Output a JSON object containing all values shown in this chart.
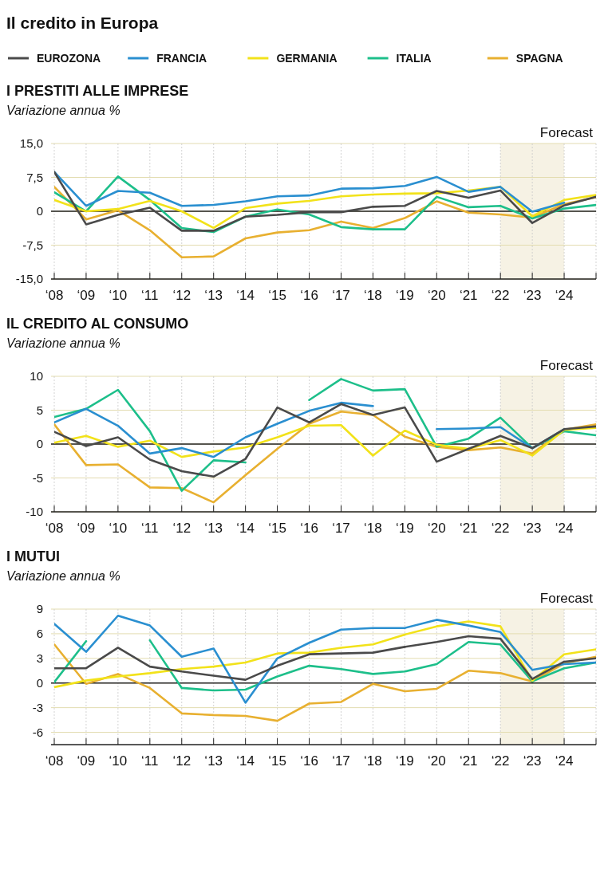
{
  "chart_data": [
    {
      "type": "line",
      "annotations": [
        "Il credito in Europa"
      ],
      "title": "I PRESTITI ALLE IMPRESE",
      "subtitle": "Variazione annua %",
      "legend": "top",
      "grid": true,
      "categories": [
        "‘08",
        "‘09",
        "‘10",
        "‘11",
        "‘12",
        "‘13",
        "‘14",
        "‘15",
        "‘16",
        "‘17",
        "‘18",
        "‘19",
        "‘20",
        "‘21",
        "‘22",
        "‘23",
        "‘24",
        null
      ],
      "ylim": [
        -15,
        15
      ],
      "yticks": [
        {
          "value": -15,
          "label": "-15,0"
        },
        {
          "value": -7.5,
          "label": "-7,5"
        },
        0,
        {
          "value": 7.5,
          "label": "7,5"
        },
        {
          "value": 15,
          "label": "15,0"
        }
      ],
      "bands": [
        {
          "axis": "x",
          "from": "‘22",
          "to": "‘24",
          "label": "Forecast",
          "color": "#f6f2e4"
        }
      ],
      "ref_lines": [
        {
          "axis": "y",
          "value": 0,
          "color": "#222222"
        }
      ],
      "series": [
        {
          "name": "EUROZONA",
          "color": "#4a4a4a",
          "values": [
            8.7,
            -2.9,
            -0.8,
            0.8,
            -4.3,
            -4.3,
            -1.2,
            -0.8,
            -0.2,
            -0.2,
            1.0,
            1.2,
            4.5,
            3.0,
            4.6,
            -2.6,
            1.3,
            3.2
          ]
        },
        {
          "name": "FRANCIA",
          "color": "#2a8fd0",
          "values": [
            8.7,
            1.2,
            4.5,
            4.1,
            1.2,
            1.4,
            2.2,
            3.3,
            3.5,
            5.0,
            5.1,
            5.6,
            7.6,
            4.3,
            5.4,
            -0.1,
            1.9,
            null
          ]
        },
        {
          "name": "GERMANIA",
          "color": "#f2e21a",
          "values": [
            2.5,
            0.0,
            0.5,
            2.3,
            0.0,
            -3.7,
            0.7,
            1.7,
            2.3,
            3.3,
            3.7,
            3.9,
            4.0,
            4.6,
            5.4,
            -1.1,
            2.5,
            3.6
          ]
        },
        {
          "name": "ITALIA",
          "color": "#1dbf8a",
          "values": [
            4.2,
            0.0,
            7.7,
            2.5,
            -3.7,
            -4.6,
            -1.2,
            0.4,
            -0.7,
            -3.5,
            -4.0,
            -4.0,
            3.2,
            0.9,
            1.2,
            -1.6,
            0.6,
            1.4
          ]
        },
        {
          "name": "SPAGNA",
          "color": "#e8b030",
          "values": [
            5.4,
            -1.8,
            0.2,
            -4.2,
            -10.2,
            -10.0,
            -6.0,
            -4.7,
            -4.2,
            -2.3,
            -3.7,
            -1.5,
            2.2,
            -0.3,
            -0.7,
            -1.4,
            1.6,
            3.1
          ]
        }
      ]
    },
    {
      "type": "line",
      "title": "IL CREDITO AL CONSUMO",
      "subtitle": "Variazione annua %",
      "grid": true,
      "categories": [
        "‘08",
        "‘09",
        "‘10",
        "‘11",
        "‘12",
        "‘13",
        "‘14",
        "‘15",
        "‘16",
        "‘17",
        "‘18",
        "‘19",
        "‘20",
        "‘21",
        "‘22",
        "‘23",
        "‘24",
        null
      ],
      "ylim": [
        -10,
        10
      ],
      "yticks": [
        -10,
        -5,
        0,
        5,
        10
      ],
      "bands": [
        {
          "axis": "x",
          "from": "‘22",
          "to": "‘24",
          "label": "Forecast",
          "color": "#f6f2e4"
        }
      ],
      "ref_lines": [
        {
          "axis": "y",
          "value": 0,
          "color": "#222222"
        }
      ],
      "series": [
        {
          "color": "#4a4a4a",
          "values": [
            1.8,
            -0.3,
            1.0,
            -2.3,
            -4.0,
            -4.8,
            -2.2,
            5.4,
            3.2,
            5.9,
            4.3,
            5.4,
            -2.6,
            -0.7,
            1.2,
            -0.6,
            2.2,
            2.6
          ]
        },
        {
          "color": "#2a8fd0",
          "values": [
            3.2,
            5.2,
            2.7,
            -1.4,
            -0.6,
            -1.9,
            1.0,
            3.0,
            4.9,
            6.1,
            5.6,
            null,
            2.2,
            2.3,
            2.5,
            -0.6,
            2.2,
            null
          ]
        },
        {
          "color": "#f2e21a",
          "values": [
            0.2,
            1.2,
            -0.4,
            0.5,
            -1.9,
            -1.1,
            -0.5,
            1.0,
            2.7,
            2.8,
            -1.7,
            2.0,
            -0.1,
            -0.7,
            0.6,
            -1.7,
            2.1,
            2.4
          ]
        },
        {
          "color": "#1dbf8a",
          "values": [
            4.0,
            5.2,
            8.0,
            1.9,
            -6.9,
            -2.4,
            -2.7,
            null,
            6.5,
            9.6,
            7.9,
            8.1,
            -0.4,
            0.8,
            3.9,
            -0.6,
            1.9,
            1.3
          ]
        },
        {
          "color": "#e8b030",
          "values": [
            2.9,
            -3.1,
            -3.0,
            -6.4,
            -6.5,
            -8.6,
            -4.6,
            -0.7,
            3.0,
            4.8,
            4.3,
            1.1,
            -0.4,
            -0.9,
            -0.5,
            -1.4,
            2.1,
            2.9
          ]
        }
      ]
    },
    {
      "type": "line",
      "title": "I MUTUI",
      "subtitle": "Variazione annua %",
      "grid": true,
      "categories": [
        "‘08",
        "‘09",
        "‘10",
        "‘11",
        "‘12",
        "‘13",
        "‘14",
        "‘15",
        "‘16",
        "‘17",
        "‘18",
        "‘19",
        "‘20",
        "‘21",
        "‘22",
        "‘23",
        "‘24",
        null
      ],
      "ylim": [
        -7.5,
        9
      ],
      "yticks": [
        -6,
        -3,
        0,
        3,
        6,
        9
      ],
      "bands": [
        {
          "axis": "x",
          "from": "‘22",
          "to": "‘24",
          "label": "Forecast",
          "color": "#f6f2e4"
        }
      ],
      "ref_lines": [
        {
          "axis": "y",
          "value": 0,
          "color": "#222222"
        }
      ],
      "series": [
        {
          "color": "#4a4a4a",
          "values": [
            1.8,
            1.8,
            4.3,
            2.0,
            1.4,
            0.9,
            0.4,
            2.1,
            3.5,
            3.6,
            3.7,
            4.4,
            5.0,
            5.7,
            5.4,
            0.5,
            2.6,
            3.0
          ]
        },
        {
          "color": "#2a8fd0",
          "values": [
            7.2,
            3.8,
            8.2,
            7.0,
            3.2,
            4.2,
            -2.4,
            3.0,
            4.9,
            6.5,
            6.7,
            6.7,
            7.7,
            7.0,
            6.2,
            1.6,
            2.3,
            2.5
          ]
        },
        {
          "color": "#f2e21a",
          "values": [
            -0.5,
            0.3,
            0.8,
            1.2,
            1.7,
            2.0,
            2.5,
            3.6,
            3.7,
            4.3,
            4.7,
            5.9,
            6.9,
            7.5,
            6.9,
            0.3,
            3.5,
            4.1
          ]
        },
        {
          "color": "#1dbf8a",
          "values": [
            0.1,
            5.1,
            null,
            5.2,
            -0.6,
            -0.9,
            -0.8,
            0.8,
            2.1,
            1.7,
            1.1,
            1.4,
            2.3,
            5.0,
            4.7,
            0.2,
            1.8,
            2.5
          ]
        },
        {
          "color": "#e8b030",
          "values": [
            4.7,
            -0.1,
            1.1,
            -0.6,
            -3.7,
            -3.9,
            -4.0,
            -4.6,
            -2.5,
            -2.3,
            -0.1,
            -1.0,
            -0.7,
            1.5,
            1.2,
            0.2,
            2.4,
            3.2
          ]
        }
      ]
    }
  ]
}
